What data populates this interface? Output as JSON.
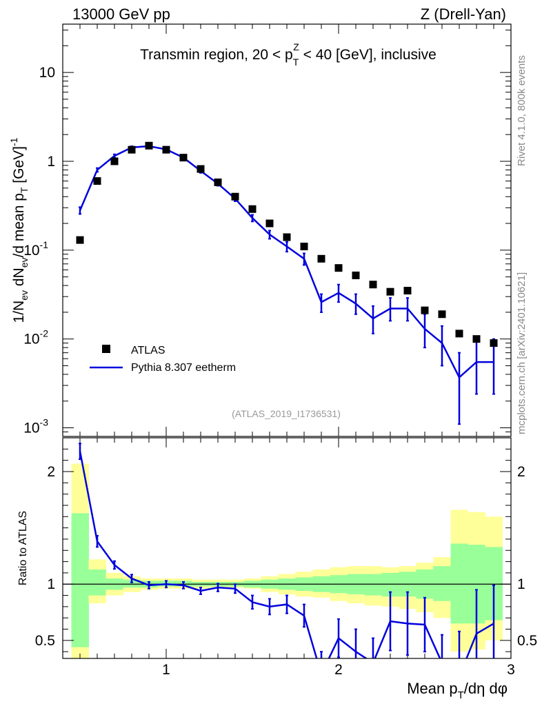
{
  "header": {
    "left": "13000 GeV pp",
    "right": "Z (Drell-Yan)"
  },
  "side_text": {
    "rivet": "Rivet 4.1.0,  800k events",
    "mcplots": "mcplots.cern.ch [arXiv:2401.10621]"
  },
  "chart_data": [
    {
      "type": "scatter",
      "panel": "main",
      "title": "Transmin region, 20 < p_T^Z < 40 [GeV], inclusive",
      "title_parts": {
        "before": "Transmin region, 20 < p",
        "sub": "T",
        "sup": "Z",
        "after": " < 40 [GeV], inclusive"
      },
      "ylabel": "1/N_ev dN_ev/d mean p_T [GeV]^-1",
      "ylabel_parts": {
        "a": "1/N",
        "a_sub": "ev",
        "b": " dN",
        "b_sub": "ev",
        "c": "/d mean p",
        "c_sub": "T",
        "d": " [GeV]",
        "d_sup": "-1"
      },
      "yscale": "log",
      "ylim": [
        0.0008,
        35
      ],
      "xlim": [
        0.4,
        3.0
      ],
      "yticks": [
        {
          "v": 0.001,
          "base": "10",
          "exp": "-3"
        },
        {
          "v": 0.01,
          "base": "10",
          "exp": "-2"
        },
        {
          "v": 0.1,
          "base": "10",
          "exp": "-1"
        },
        {
          "v": 1,
          "base": "1",
          "exp": ""
        },
        {
          "v": 10,
          "base": "10",
          "exp": ""
        }
      ],
      "watermark": "(ATLAS_2019_I1736531)",
      "legend": {
        "position": "lower-left",
        "entries": [
          {
            "label": "ATLAS",
            "style": "square-marker",
            "color": "#000000"
          },
          {
            "label": "Pythia 8.307 eetherm",
            "style": "line",
            "color": "#0000dd"
          }
        ]
      },
      "series": [
        {
          "name": "ATLAS",
          "x": [
            0.5,
            0.6,
            0.7,
            0.8,
            0.9,
            1.0,
            1.1,
            1.2,
            1.3,
            1.4,
            1.5,
            1.6,
            1.7,
            1.8,
            1.9,
            2.0,
            2.1,
            2.2,
            2.3,
            2.4,
            2.5,
            2.6,
            2.7,
            2.8,
            2.9
          ],
          "y": [
            0.13,
            0.6,
            1.0,
            1.35,
            1.5,
            1.35,
            1.1,
            0.82,
            0.58,
            0.4,
            0.29,
            0.2,
            0.14,
            0.11,
            0.08,
            0.063,
            0.052,
            0.041,
            0.034,
            0.035,
            0.021,
            0.019,
            0.0115,
            0.01,
            0.009
          ]
        },
        {
          "name": "Pythia 8.307 eetherm",
          "x": [
            0.5,
            0.6,
            0.7,
            0.8,
            0.9,
            1.0,
            1.1,
            1.2,
            1.3,
            1.4,
            1.5,
            1.6,
            1.7,
            1.8,
            1.9,
            2.0,
            2.1,
            2.2,
            2.3,
            2.4,
            2.5,
            2.6,
            2.7,
            2.8,
            2.9
          ],
          "y": [
            0.28,
            0.8,
            1.15,
            1.43,
            1.48,
            1.36,
            1.1,
            0.78,
            0.56,
            0.38,
            0.23,
            0.15,
            0.11,
            0.08,
            0.026,
            0.033,
            0.025,
            0.017,
            0.022,
            0.022,
            0.013,
            0.009,
            0.0037,
            0.0055,
            0.0055
          ],
          "err_low": [
            0.025,
            0.04,
            0.05,
            0.05,
            0.05,
            0.05,
            0.04,
            0.04,
            0.03,
            0.025,
            0.02,
            0.016,
            0.014,
            0.012,
            0.006,
            0.007,
            0.006,
            0.0055,
            0.006,
            0.006,
            0.005,
            0.004,
            0.0026,
            0.0031,
            0.0031
          ],
          "err_high": [
            0.025,
            0.04,
            0.05,
            0.05,
            0.05,
            0.05,
            0.04,
            0.04,
            0.03,
            0.025,
            0.02,
            0.016,
            0.014,
            0.012,
            0.006,
            0.008,
            0.007,
            0.0065,
            0.007,
            0.007,
            0.006,
            0.005,
            0.0033,
            0.0045,
            0.0045
          ]
        }
      ]
    },
    {
      "type": "line",
      "panel": "ratio",
      "ylabel": "Ratio to ATLAS",
      "xlabel": "Mean p_T/dη dφ",
      "xlabel_parts": {
        "a": "Mean p",
        "a_sub": "T",
        "b": "/dη dφ"
      },
      "xlim": [
        0.4,
        3.0
      ],
      "ylim": [
        0.34,
        2.3
      ],
      "xticks": [
        {
          "v": 1,
          "label": "1"
        },
        {
          "v": 2,
          "label": "2"
        },
        {
          "v": 3,
          "label": "3"
        }
      ],
      "yticks": [
        {
          "v": 0.5,
          "label": "0.5"
        },
        {
          "v": 1,
          "label": "1"
        },
        {
          "v": 2,
          "label": "2"
        }
      ],
      "bands": {
        "bin_edges": [
          0.45,
          0.55,
          0.65,
          0.75,
          0.85,
          0.95,
          1.05,
          1.15,
          1.25,
          1.35,
          1.45,
          1.55,
          1.65,
          1.75,
          1.85,
          1.95,
          2.05,
          2.15,
          2.25,
          2.35,
          2.45,
          2.55,
          2.65,
          2.75,
          2.85,
          2.95
        ],
        "yellow_lo": [
          0.34,
          0.83,
          0.9,
          0.93,
          0.95,
          0.96,
          0.96,
          0.96,
          0.97,
          0.97,
          0.96,
          0.93,
          0.91,
          0.89,
          0.88,
          0.85,
          0.83,
          0.81,
          0.8,
          0.78,
          0.75,
          0.7,
          0.4,
          0.42,
          0.5
        ],
        "yellow_hi": [
          2.07,
          1.22,
          1.1,
          1.07,
          1.05,
          1.05,
          1.05,
          1.04,
          1.04,
          1.04,
          1.05,
          1.07,
          1.09,
          1.11,
          1.13,
          1.15,
          1.16,
          1.16,
          1.15,
          1.16,
          1.19,
          1.24,
          1.66,
          1.64,
          1.6
        ],
        "green_lo": [
          0.44,
          0.9,
          0.95,
          0.97,
          0.97,
          0.98,
          0.98,
          0.98,
          0.98,
          0.98,
          0.97,
          0.96,
          0.95,
          0.94,
          0.93,
          0.92,
          0.91,
          0.9,
          0.89,
          0.89,
          0.87,
          0.85,
          0.65,
          0.65,
          0.68
        ],
        "green_hi": [
          1.63,
          1.13,
          1.05,
          1.04,
          1.03,
          1.03,
          1.03,
          1.02,
          1.02,
          1.02,
          1.03,
          1.04,
          1.05,
          1.06,
          1.07,
          1.08,
          1.09,
          1.09,
          1.1,
          1.11,
          1.13,
          1.16,
          1.36,
          1.35,
          1.33
        ],
        "yellow_color": "#ffff99",
        "green_color": "#99ff99"
      },
      "series": [
        {
          "name": "Pythia 8.307 eetherm / ATLAS",
          "color": "#0000dd",
          "x": [
            0.5,
            0.6,
            0.7,
            0.8,
            0.9,
            1.0,
            1.1,
            1.2,
            1.3,
            1.4,
            1.5,
            1.6,
            1.7,
            1.8,
            1.9,
            2.0,
            2.1,
            2.2,
            2.3,
            2.4,
            2.5,
            2.6,
            2.7,
            2.8,
            2.9
          ],
          "y": [
            2.18,
            1.38,
            1.17,
            1.05,
            0.99,
            1.0,
            0.99,
            0.94,
            0.97,
            0.96,
            0.84,
            0.8,
            0.82,
            0.72,
            0.2,
            0.52,
            0.4,
            0.3,
            0.67,
            0.65,
            0.64,
            0.3,
            0.18,
            0.56,
            0.65
          ],
          "err": [
            0.07,
            0.05,
            0.035,
            0.035,
            0.03,
            0.03,
            0.03,
            0.03,
            0.035,
            0.04,
            0.06,
            0.07,
            0.08,
            0.1,
            0.2,
            0.17,
            0.2,
            0.22,
            0.26,
            0.28,
            0.24,
            0.25,
            0.4,
            0.39,
            0.34
          ]
        }
      ]
    }
  ]
}
